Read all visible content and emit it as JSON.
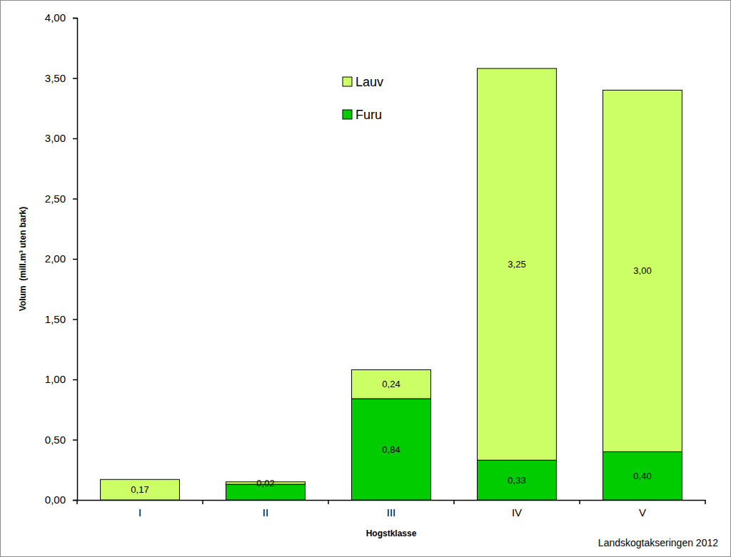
{
  "chart_data": {
    "type": "bar",
    "stacked": true,
    "data_labels": true,
    "legend": "top",
    "x_label": "Hogstklasse",
    "y_label": "Volum  (mill.m³ uten bark)",
    "source": "Landskogtakseringen 2012",
    "categories": [
      "I",
      "II",
      "III",
      "IV",
      "V"
    ],
    "series": [
      {
        "name": "Furu",
        "color": "#00cc00",
        "values": [
          null,
          0.13,
          0.84,
          0.33,
          0.4
        ],
        "value_labels": [
          null,
          null,
          "0,84",
          "0,33",
          "0,40"
        ]
      },
      {
        "name": "Lauv",
        "color": "#ccff66",
        "values": [
          0.17,
          0.02,
          0.24,
          3.25,
          3.0
        ],
        "value_labels": [
          "0,17",
          "0,02",
          "0,24",
          "3,25",
          "3,00"
        ]
      }
    ],
    "ylim": [
      0,
      4
    ],
    "yticks": [
      {
        "value": 0,
        "label": "0,00"
      },
      {
        "value": 0.5,
        "label": "0,50"
      },
      {
        "value": 1,
        "label": "1,00"
      },
      {
        "value": 1.5,
        "label": "1,50"
      },
      {
        "value": 2,
        "label": "2,00"
      },
      {
        "value": 2.5,
        "label": "2,50"
      },
      {
        "value": 3,
        "label": "3,00"
      },
      {
        "value": 3.5,
        "label": "3,50"
      },
      {
        "value": 4,
        "label": "4,00"
      }
    ]
  }
}
